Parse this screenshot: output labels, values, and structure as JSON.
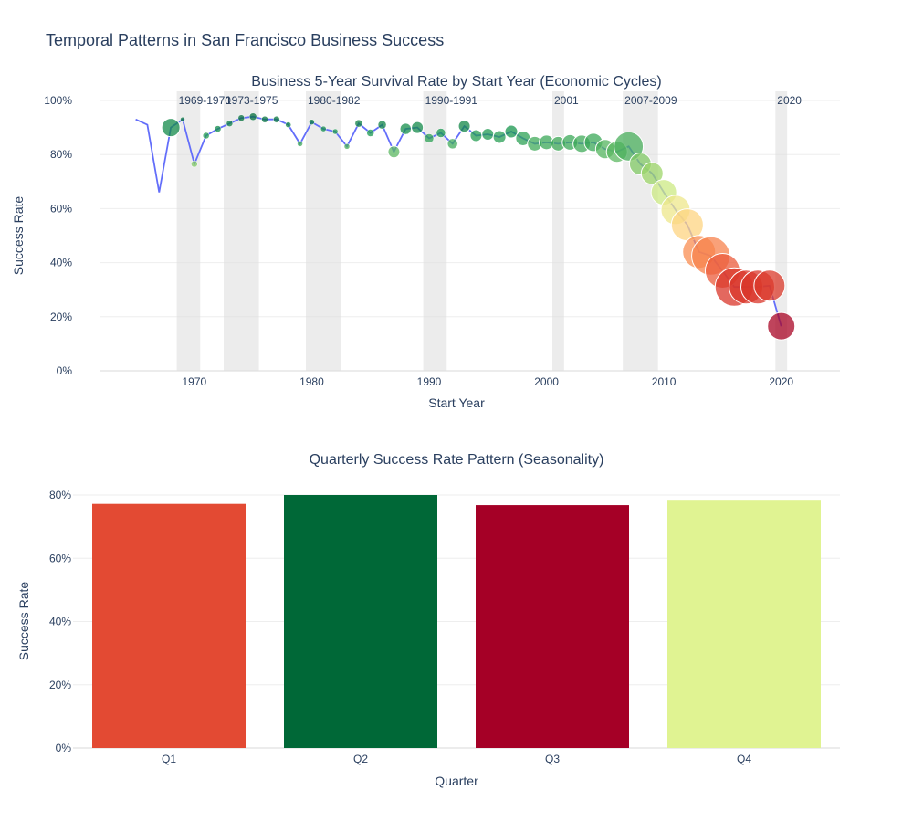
{
  "figure_title": "Temporal Patterns in San Francisco Business Success",
  "colors": {
    "line": "#636efa",
    "recession_band": "#e0e0e0",
    "grid": "#eeeeee",
    "q1": "#e34a33",
    "q2": "#006837",
    "q3": "#a50026",
    "q4": "#e0f392"
  },
  "chart_data": [
    {
      "type": "scatter",
      "title": "Business 5-Year Survival Rate by Start Year (Economic Cycles)",
      "xlabel": "Start Year",
      "ylabel": "Success Rate",
      "xlim": [
        1962,
        2025
      ],
      "ylim": [
        0,
        1.0
      ],
      "x_ticks": [
        1970,
        1980,
        1990,
        2000,
        2010,
        2020
      ],
      "y_ticks": [
        {
          "value": 0,
          "label": "0%"
        },
        {
          "value": 0.2,
          "label": "20%"
        },
        {
          "value": 0.4,
          "label": "40%"
        },
        {
          "value": 0.6,
          "label": "60%"
        },
        {
          "value": 0.8,
          "label": "80%"
        },
        {
          "value": 1.0,
          "label": "100%"
        }
      ],
      "recessions": [
        {
          "start": 1968.5,
          "end": 1970.5,
          "label": "1969-1970"
        },
        {
          "start": 1972.5,
          "end": 1975.5,
          "label": "1973-1975"
        },
        {
          "start": 1979.5,
          "end": 1982.5,
          "label": "1980-1982"
        },
        {
          "start": 1989.5,
          "end": 1991.5,
          "label": "1990-1991"
        },
        {
          "start": 2000.5,
          "end": 2001.5,
          "label": "2001"
        },
        {
          "start": 2006.5,
          "end": 2009.5,
          "label": "2007-2009"
        },
        {
          "start": 2019.5,
          "end": 2020.5,
          "label": "2020"
        }
      ],
      "points": [
        {
          "x": 1965,
          "y": 0.93,
          "size": 0
        },
        {
          "x": 1966,
          "y": 0.91,
          "size": 0
        },
        {
          "x": 1967,
          "y": 0.66,
          "size": 0
        },
        {
          "x": 1968,
          "y": 0.9,
          "size": 10
        },
        {
          "x": 1969,
          "y": 0.93,
          "size": 2.5
        },
        {
          "x": 1970,
          "y": 0.765,
          "size": 3.5
        },
        {
          "x": 1971,
          "y": 0.87,
          "size": 3.5
        },
        {
          "x": 1972,
          "y": 0.895,
          "size": 3.5
        },
        {
          "x": 1973,
          "y": 0.915,
          "size": 3.5
        },
        {
          "x": 1974,
          "y": 0.935,
          "size": 3.5
        },
        {
          "x": 1975,
          "y": 0.94,
          "size": 4
        },
        {
          "x": 1976,
          "y": 0.93,
          "size": 3.5
        },
        {
          "x": 1977,
          "y": 0.93,
          "size": 3.5
        },
        {
          "x": 1978,
          "y": 0.91,
          "size": 3
        },
        {
          "x": 1979,
          "y": 0.84,
          "size": 3
        },
        {
          "x": 1980,
          "y": 0.92,
          "size": 3
        },
        {
          "x": 1981,
          "y": 0.895,
          "size": 3
        },
        {
          "x": 1982,
          "y": 0.885,
          "size": 3
        },
        {
          "x": 1983,
          "y": 0.83,
          "size": 3
        },
        {
          "x": 1984,
          "y": 0.915,
          "size": 4
        },
        {
          "x": 1985,
          "y": 0.88,
          "size": 4
        },
        {
          "x": 1986,
          "y": 0.91,
          "size": 4.5
        },
        {
          "x": 1987,
          "y": 0.81,
          "size": 6.5
        },
        {
          "x": 1988,
          "y": 0.895,
          "size": 6
        },
        {
          "x": 1989,
          "y": 0.9,
          "size": 6.5
        },
        {
          "x": 1990,
          "y": 0.86,
          "size": 5
        },
        {
          "x": 1991,
          "y": 0.88,
          "size": 5
        },
        {
          "x": 1992,
          "y": 0.84,
          "size": 5.5
        },
        {
          "x": 1993,
          "y": 0.905,
          "size": 6.5
        },
        {
          "x": 1994,
          "y": 0.87,
          "size": 6.5
        },
        {
          "x": 1995,
          "y": 0.875,
          "size": 6.5
        },
        {
          "x": 1996,
          "y": 0.865,
          "size": 7
        },
        {
          "x": 1997,
          "y": 0.885,
          "size": 7
        },
        {
          "x": 1998,
          "y": 0.86,
          "size": 8
        },
        {
          "x": 1999,
          "y": 0.84,
          "size": 8
        },
        {
          "x": 2000,
          "y": 0.845,
          "size": 8
        },
        {
          "x": 2001,
          "y": 0.84,
          "size": 8
        },
        {
          "x": 2002,
          "y": 0.845,
          "size": 8.5
        },
        {
          "x": 2003,
          "y": 0.84,
          "size": 9.5
        },
        {
          "x": 2004,
          "y": 0.845,
          "size": 10
        },
        {
          "x": 2005,
          "y": 0.82,
          "size": 10.5
        },
        {
          "x": 2006,
          "y": 0.81,
          "size": 11.5
        },
        {
          "x": 2007,
          "y": 0.83,
          "size": 16
        },
        {
          "x": 2008,
          "y": 0.765,
          "size": 12
        },
        {
          "x": 2009,
          "y": 0.73,
          "size": 12
        },
        {
          "x": 2010,
          "y": 0.66,
          "size": 14
        },
        {
          "x": 2011,
          "y": 0.595,
          "size": 16
        },
        {
          "x": 2012,
          "y": 0.54,
          "size": 17.5
        },
        {
          "x": 2013,
          "y": 0.44,
          "size": 18
        },
        {
          "x": 2014,
          "y": 0.425,
          "size": 21
        },
        {
          "x": 2015,
          "y": 0.37,
          "size": 19
        },
        {
          "x": 2016,
          "y": 0.31,
          "size": 21
        },
        {
          "x": 2017,
          "y": 0.31,
          "size": 18.5
        },
        {
          "x": 2018,
          "y": 0.31,
          "size": 18.5
        },
        {
          "x": 2019,
          "y": 0.315,
          "size": 17
        },
        {
          "x": 2020,
          "y": 0.165,
          "size": 15
        }
      ]
    },
    {
      "type": "bar",
      "title": "Quarterly Success Rate Pattern (Seasonality)",
      "xlabel": "Quarter",
      "ylabel": "Success Rate",
      "categories": [
        "Q1",
        "Q2",
        "Q3",
        "Q4"
      ],
      "values": [
        0.772,
        0.8,
        0.768,
        0.785
      ],
      "ylim": [
        0,
        0.8
      ],
      "y_ticks": [
        {
          "value": 0,
          "label": "0%"
        },
        {
          "value": 0.2,
          "label": "20%"
        },
        {
          "value": 0.4,
          "label": "40%"
        },
        {
          "value": 0.6,
          "label": "60%"
        },
        {
          "value": 0.8,
          "label": "80%"
        }
      ]
    }
  ]
}
